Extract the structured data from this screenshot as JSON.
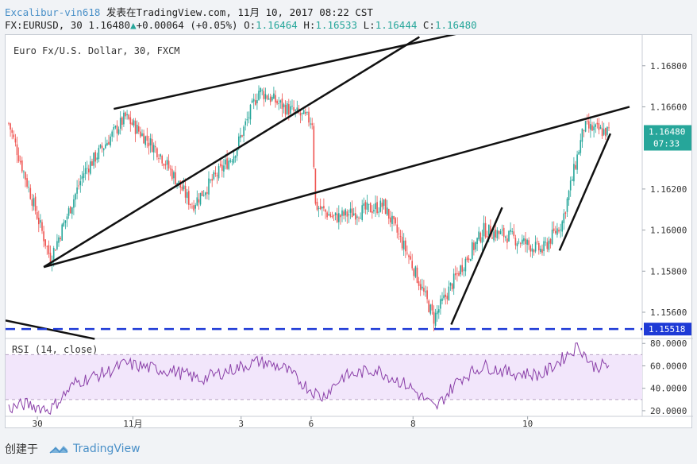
{
  "header": {
    "user": "Excalibur-vin618",
    "published_on": "发表在TradingView.com, 11月 10, 2017 08:22 CST",
    "symbol": "FX:EURUSD, 30",
    "last": "1.16480",
    "arrow": "▲",
    "change": "+0.00064 (+0.05%)",
    "ohlc": [
      {
        "label": "O:",
        "value": "1.16464"
      },
      {
        "label": "H:",
        "value": "1.16533"
      },
      {
        "label": "L:",
        "value": "1.16444"
      },
      {
        "label": "C:",
        "value": "1.16480"
      }
    ]
  },
  "chart_data": {
    "type": "candlestick",
    "title": "Euro Fx/U.S. Dollar, 30, FXCM",
    "price_axis": {
      "ticks": [
        1.156,
        1.158,
        1.16,
        1.162,
        1.166,
        1.168
      ],
      "tick_labels": [
        "1.15600",
        "1.15800",
        "1.16000",
        "1.16200",
        "1.16600",
        "1.16800"
      ],
      "range": [
        1.1548,
        1.1695
      ]
    },
    "last_price_label": "1.16480",
    "last_price": 1.1648,
    "countdown_label": "07:33",
    "support_line": {
      "value": 1.15518,
      "label": "1.15518",
      "color": "#1e3ad6",
      "style": "dashed"
    },
    "x_axis_labels": [
      "30",
      "11月",
      "3",
      "6",
      "8",
      "10"
    ],
    "x_axis_label_positions": [
      0.05,
      0.2,
      0.37,
      0.48,
      0.64,
      0.82
    ],
    "key_points": [
      {
        "i": 0,
        "close": 1.1652
      },
      {
        "i": 25,
        "close": 1.1586
      },
      {
        "i": 45,
        "close": 1.1628
      },
      {
        "i": 70,
        "close": 1.1655
      },
      {
        "i": 90,
        "close": 1.1638
      },
      {
        "i": 110,
        "close": 1.1612
      },
      {
        "i": 135,
        "close": 1.1637
      },
      {
        "i": 150,
        "close": 1.1668
      },
      {
        "i": 165,
        "close": 1.166
      },
      {
        "i": 182,
        "close": 1.1653
      },
      {
        "i": 184,
        "close": 1.1612
      },
      {
        "i": 195,
        "close": 1.1606
      },
      {
        "i": 225,
        "close": 1.1612
      },
      {
        "i": 240,
        "close": 1.1587
      },
      {
        "i": 255,
        "close": 1.1557
      },
      {
        "i": 270,
        "close": 1.158
      },
      {
        "i": 285,
        "close": 1.16
      },
      {
        "i": 300,
        "close": 1.1597
      },
      {
        "i": 320,
        "close": 1.159
      },
      {
        "i": 332,
        "close": 1.1604
      },
      {
        "i": 345,
        "close": 1.165
      },
      {
        "i": 357,
        "close": 1.1648
      }
    ],
    "trendlines": [
      {
        "p1": [
          0.06,
          1.1582
        ],
        "p2": [
          0.65,
          1.1694
        ]
      },
      {
        "p1": [
          0.17,
          1.1659
        ],
        "p2": [
          0.73,
          1.1697
        ]
      },
      {
        "p1": [
          0.06,
          1.1582
        ],
        "p2": [
          0.98,
          1.166
        ]
      },
      {
        "p1": [
          0.7,
          1.1554
        ],
        "p2": [
          0.78,
          1.1611
        ]
      },
      {
        "p1": [
          0.87,
          1.159
        ],
        "p2": [
          0.95,
          1.1647
        ]
      },
      {
        "p1": [
          0.0,
          1.1556
        ],
        "p2": [
          0.14,
          1.1547
        ]
      }
    ],
    "colors": {
      "up": "#26a69a",
      "down": "#ef5350",
      "trendline": "#111111",
      "rsi_line": "#8a3fa8",
      "rsi_band": "#f2e6fb"
    },
    "rsi": {
      "label": "RSI (14, close)",
      "ticks": [
        20,
        40,
        60,
        80
      ],
      "tick_labels": [
        "20.0000",
        "40.0000",
        "60.0000",
        "80.0000"
      ],
      "range": [
        15,
        83
      ],
      "band": [
        30,
        70
      ],
      "key_points": [
        {
          "i": 0,
          "v": 22
        },
        {
          "i": 10,
          "v": 26
        },
        {
          "i": 25,
          "v": 21
        },
        {
          "i": 40,
          "v": 45
        },
        {
          "i": 60,
          "v": 55
        },
        {
          "i": 70,
          "v": 62
        },
        {
          "i": 85,
          "v": 58
        },
        {
          "i": 100,
          "v": 55
        },
        {
          "i": 115,
          "v": 48
        },
        {
          "i": 130,
          "v": 55
        },
        {
          "i": 150,
          "v": 64
        },
        {
          "i": 165,
          "v": 58
        },
        {
          "i": 180,
          "v": 40
        },
        {
          "i": 188,
          "v": 32
        },
        {
          "i": 200,
          "v": 50
        },
        {
          "i": 220,
          "v": 57
        },
        {
          "i": 240,
          "v": 42
        },
        {
          "i": 256,
          "v": 22
        },
        {
          "i": 270,
          "v": 48
        },
        {
          "i": 285,
          "v": 60
        },
        {
          "i": 300,
          "v": 54
        },
        {
          "i": 320,
          "v": 52
        },
        {
          "i": 335,
          "v": 70
        },
        {
          "i": 342,
          "v": 78
        },
        {
          "i": 350,
          "v": 60
        },
        {
          "i": 357,
          "v": 60
        }
      ]
    }
  },
  "footer": {
    "created_with": "创建于",
    "brand": "TradingView"
  }
}
